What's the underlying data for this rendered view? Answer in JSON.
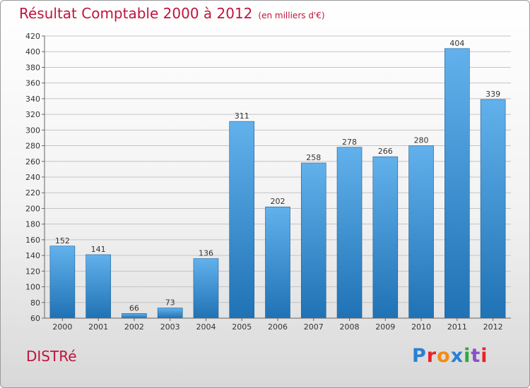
{
  "header": {
    "title": "Résultat Comptable 2000 à 2012",
    "subtitle": "(en milliers d'€)"
  },
  "footer": {
    "place": "DISTRé",
    "logo": "Proxiti",
    "logo_colors": [
      "#2a7fd4",
      "#e8232a",
      "#f28c12",
      "#2a7fd4",
      "#2eaa3a",
      "#8a4fc8",
      "#e8232a"
    ]
  },
  "colors": {
    "bar_top": "#62b1ec",
    "bar_bottom": "#1f72b4",
    "grid": "#c4c4c4",
    "accent": "#c0143c"
  },
  "chart_data": {
    "type": "bar",
    "title": "Résultat Comptable 2000 à 2012",
    "subtitle": "(en milliers d'€)",
    "xlabel": "",
    "ylabel": "",
    "categories": [
      "2000",
      "2001",
      "2002",
      "2003",
      "2004",
      "2005",
      "2006",
      "2007",
      "2008",
      "2009",
      "2010",
      "2011",
      "2012"
    ],
    "values": [
      152,
      141,
      66,
      73,
      136,
      311,
      202,
      258,
      278,
      266,
      280,
      404,
      339
    ],
    "ylim": [
      60,
      420
    ],
    "yticks": [
      60,
      80,
      100,
      120,
      140,
      160,
      180,
      200,
      220,
      240,
      260,
      280,
      300,
      320,
      340,
      360,
      380,
      400,
      420
    ],
    "grid": true,
    "data_labels": true
  }
}
